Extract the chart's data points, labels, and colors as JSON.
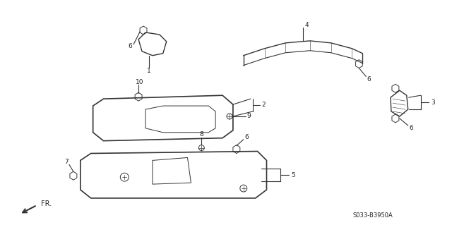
{
  "bg_color": "#ffffff",
  "diagram_code": "S033-B3950A",
  "fr_label": "FR.",
  "line_color": "#333333",
  "text_color": "#222222",
  "figsize": [
    6.4,
    3.19
  ],
  "dpi": 100
}
